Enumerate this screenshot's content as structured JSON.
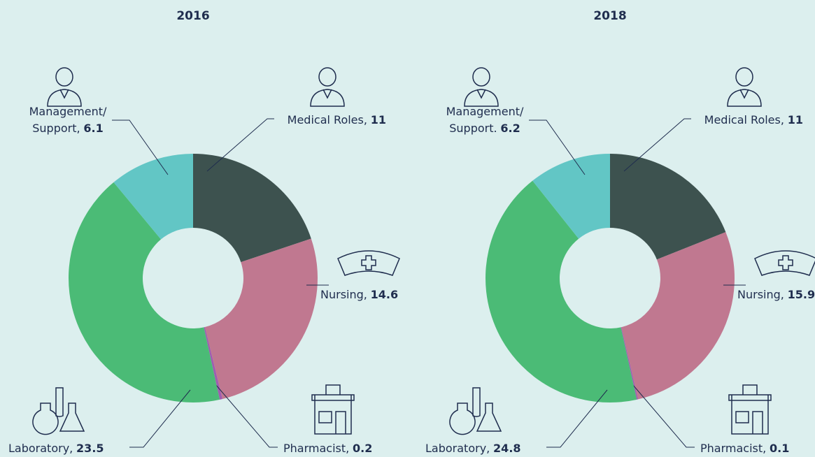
{
  "chart_data": [
    {
      "type": "donut",
      "title": "2016",
      "labels": [
        "Medical Roles,",
        "Nursing,",
        "Pharmacist,",
        "Laboratory,",
        "Management/ Support,"
      ],
      "values": [
        11,
        14.6,
        0.2,
        23.5,
        6.1
      ],
      "colors": [
        "#3d524f",
        "#c07890",
        "#a05cb0",
        "#4bbb76",
        "#62c6c5"
      ]
    },
    {
      "type": "donut",
      "title": "2018",
      "labels": [
        "Medical Roles,",
        "Nursing,",
        "Pharmacist,",
        "Laboratory,",
        "Management/ Support."
      ],
      "values": [
        11,
        15.9,
        0.1,
        24.8,
        6.2
      ],
      "colors": [
        "#3d524f",
        "#c07890",
        "#a05cb0",
        "#4bbb76",
        "#62c6c5"
      ]
    }
  ]
}
